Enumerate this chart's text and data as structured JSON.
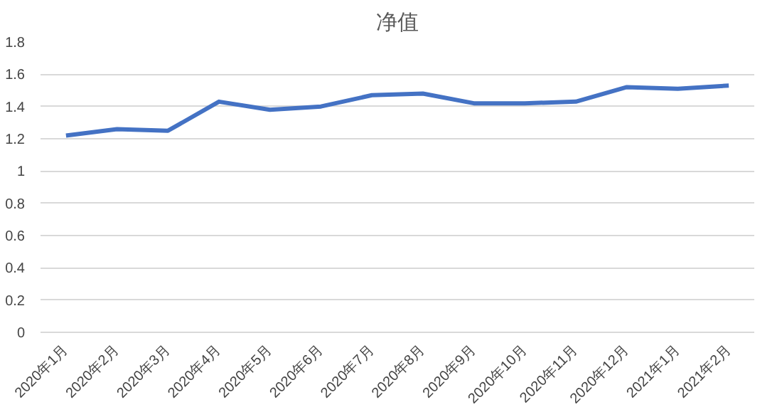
{
  "chart_data": {
    "type": "line",
    "title": "净值",
    "categories": [
      "2020年1月",
      "2020年2月",
      "2020年3月",
      "2020年4月",
      "2020年5月",
      "2020年6月",
      "2020年7月",
      "2020年8月",
      "2020年9月",
      "2020年10月",
      "2020年11月",
      "2020年12月",
      "2021年1月",
      "2021年2月"
    ],
    "series": [
      {
        "color": "#4472c4",
        "values": [
          1.22,
          1.26,
          1.25,
          1.43,
          1.38,
          1.4,
          1.47,
          1.48,
          1.42,
          1.42,
          1.43,
          1.52,
          1.51,
          1.53
        ]
      }
    ],
    "ylim": [
      0,
      1.8
    ],
    "yticks": [
      0,
      0.2,
      0.4,
      0.6,
      0.8,
      1,
      1.2,
      1.4,
      1.6,
      1.8
    ],
    "grid": "y",
    "marker": "none",
    "line_style": "solid"
  }
}
